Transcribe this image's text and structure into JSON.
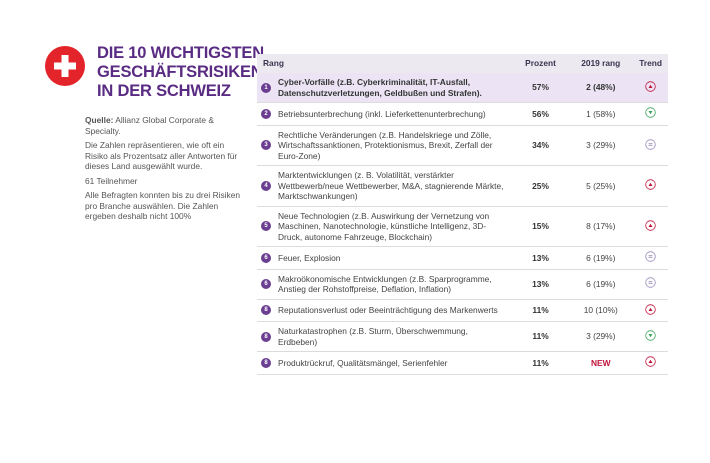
{
  "header": {
    "title_lines": [
      "DIE 10 WICHTIGSTEN",
      "GESCHÄFTSRISIKEN",
      "IN DER SCHWEIZ"
    ]
  },
  "notes": {
    "source_label": "Quelle:",
    "source": "Allianz Global Corporate & Specialty.",
    "paragraphs": [
      "Die Zahlen repräsentieren, wie oft ein Risiko als Prozentsatz aller Antworten für dieses Land ausgewählt wurde.",
      "61 Teilnehmer",
      "Alle Befragten konnten bis zu drei Risiken pro Branche auswählen. Die Zahlen ergeben deshalb nicht 100%"
    ]
  },
  "table": {
    "columns": [
      "Rang",
      "Prozent",
      "2019 rang",
      "Trend"
    ],
    "rows": [
      {
        "rank": "1",
        "risk": "Cyber-Vorfälle (z.B. Cyberkriminalität, IT-Ausfall, Datenschutzverletzungen, Geldbußen und Strafen).",
        "percent": "57%",
        "rank_2019": "2 (48%)",
        "trend": "up"
      },
      {
        "rank": "2",
        "risk": "Betriebsunterbrechung (inkl. Lieferkettenunterbrechung)",
        "percent": "56%",
        "rank_2019": "1 (58%)",
        "trend": "down"
      },
      {
        "rank": "3",
        "risk": "Rechtliche Veränderungen (z.B. Handelskriege und Zölle, Wirtschaftssanktionen, Protektionismus, Brexit, Zerfall der Euro-Zone)",
        "percent": "34%",
        "rank_2019": "3 (29%)",
        "trend": "same"
      },
      {
        "rank": "4",
        "risk": "Marktentwicklungen (z. B. Volatilität, verstärkter Wettbewerb/neue Wettbewerber, M&A, stagnierende Märkte, Marktschwankungen)",
        "percent": "25%",
        "rank_2019": "5 (25%)",
        "trend": "up"
      },
      {
        "rank": "5",
        "risk": "Neue Technologien (z.B. Auswirkung der Vernetzung von Maschinen, Nanotechnologie, künstliche Intelligenz, 3D-Druck, autonome Fahrzeuge, Blockchain)",
        "percent": "15%",
        "rank_2019": "8 (17%)",
        "trend": "up"
      },
      {
        "rank": "6",
        "risk": "Feuer, Explosion",
        "percent": "13%",
        "rank_2019": "6 (19%)",
        "trend": "same"
      },
      {
        "rank": "6",
        "risk": "Makroökonomische Entwicklungen (z.B. Sparprogramme, Anstieg der Rohstoffpreise, Deflation, Inflation)",
        "percent": "13%",
        "rank_2019": "6 (19%)",
        "trend": "same"
      },
      {
        "rank": "8",
        "risk": "Reputationsverlust oder Beeinträchtigung des Markenwerts",
        "percent": "11%",
        "rank_2019": "10 (10%)",
        "trend": "up"
      },
      {
        "rank": "8",
        "risk": "Naturkatastrophen (z.B. Sturm, Überschwemmung, Erdbeben)",
        "percent": "11%",
        "rank_2019": "3 (29%)",
        "trend": "down"
      },
      {
        "rank": "8",
        "risk": "Produktrückruf, Qualitätsmängel, Serienfehler",
        "percent": "11%",
        "rank_2019": "NEW",
        "trend": "up"
      }
    ]
  }
}
